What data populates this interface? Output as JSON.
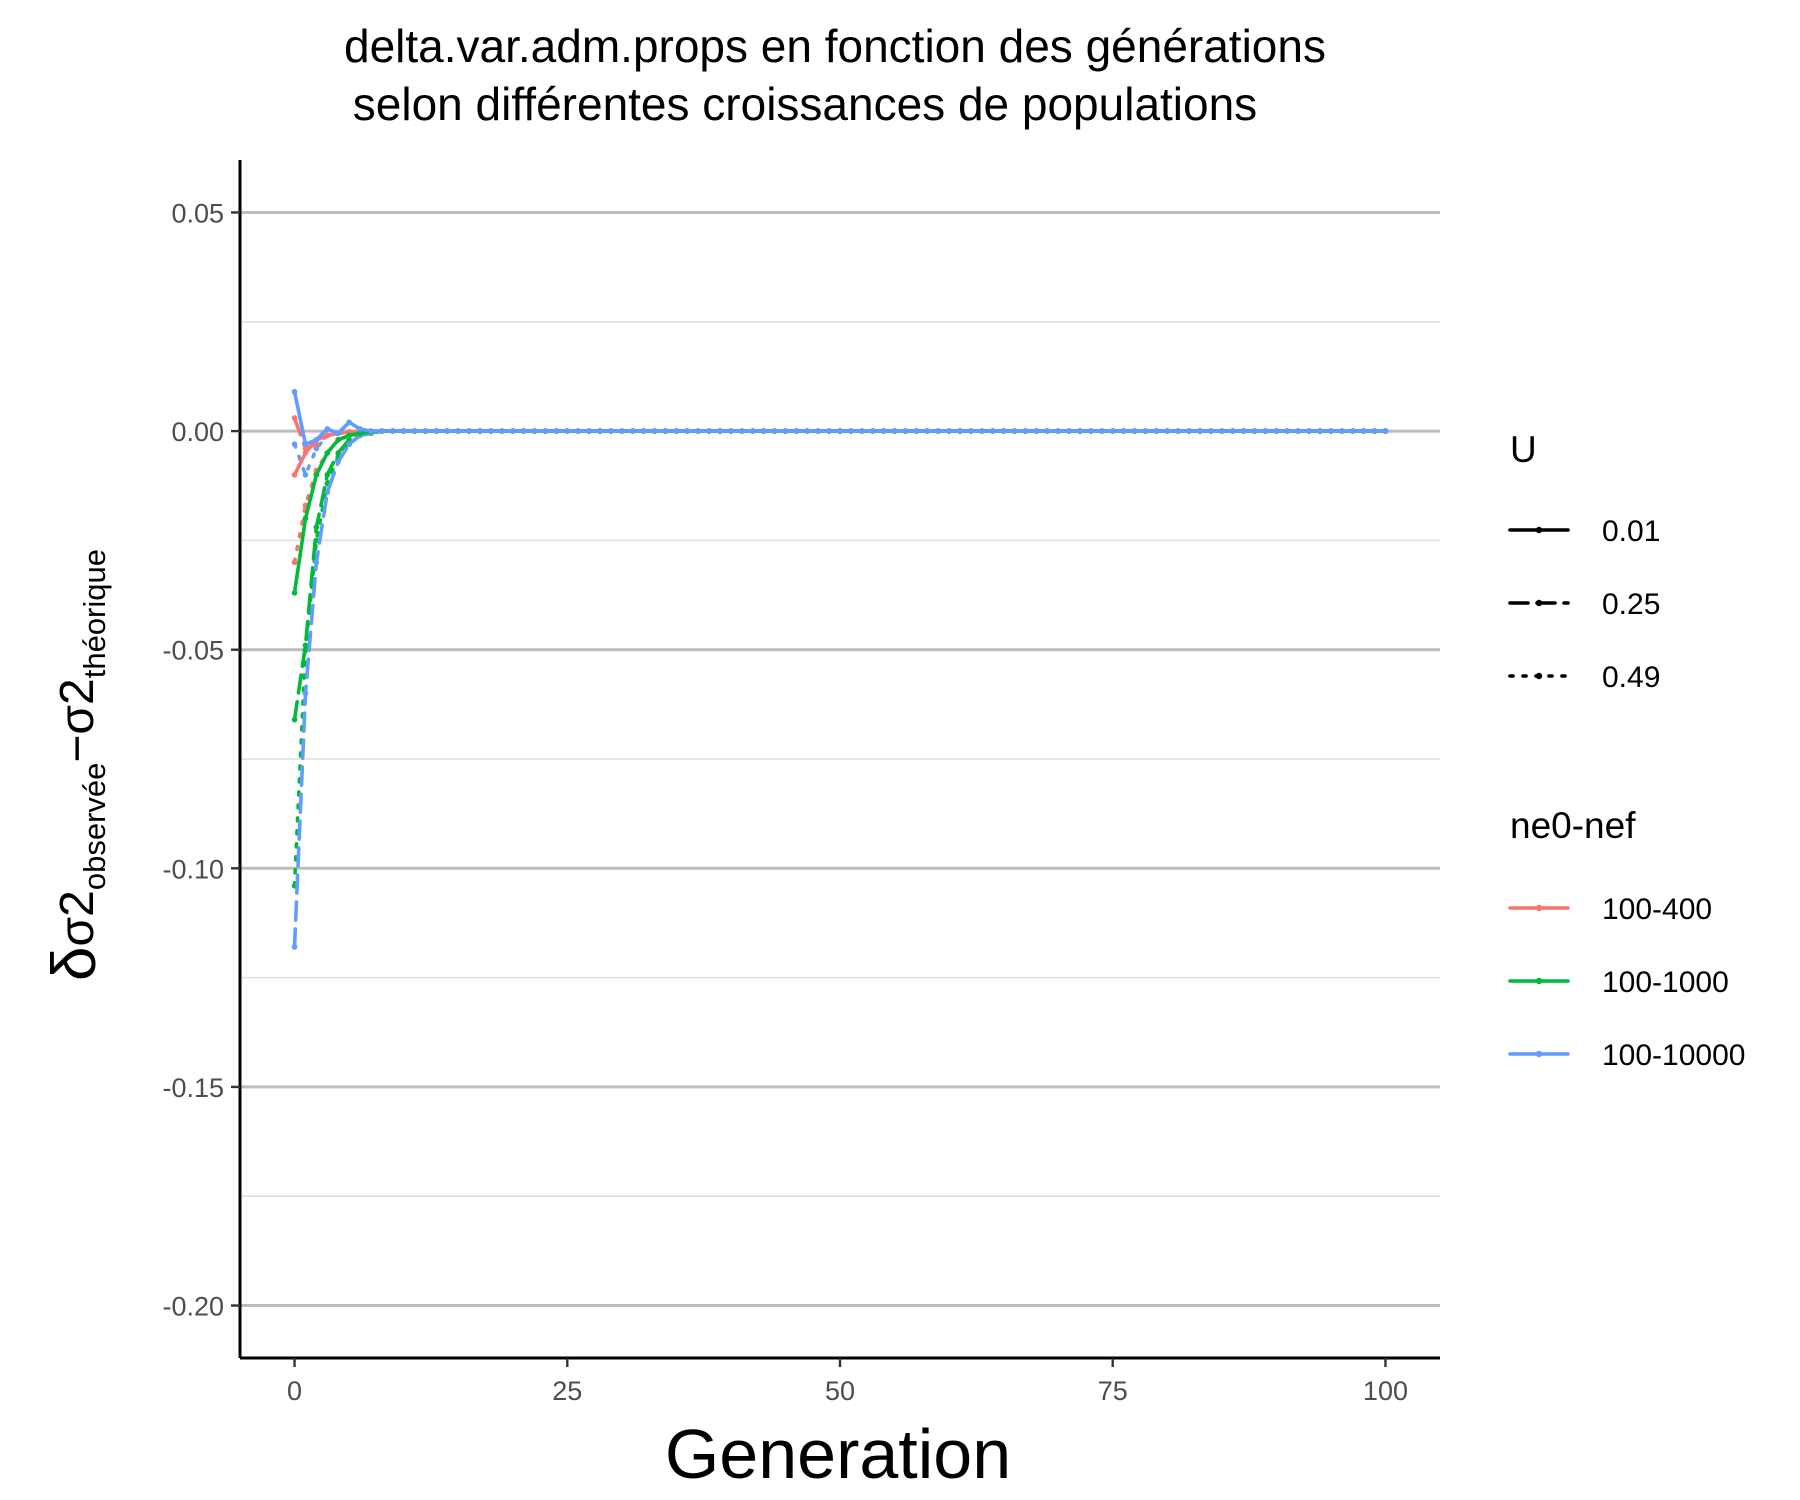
{
  "chart_data": {
    "type": "line",
    "title_lines": [
      "delta.var.adm.props en fonction des générations",
      "selon différentes croissances de populations"
    ],
    "xlabel": "Generation",
    "ylabel": {
      "delta": "δ",
      "sigma2": "σ2",
      "sub_observed": "observée",
      "minus": "−",
      "sub_theoretical": "théorique"
    },
    "xlim": [
      -5,
      105
    ],
    "ylim": [
      -0.212,
      0.062
    ],
    "x_ticks": [
      0,
      25,
      50,
      75,
      100
    ],
    "x_tick_labels": [
      "0",
      "25",
      "50",
      "75",
      "100"
    ],
    "y_ticks": [
      0.05,
      0.0,
      -0.05,
      -0.1,
      -0.15,
      -0.2
    ],
    "y_tick_labels": [
      "0.05",
      "0.00",
      "-0.05",
      "-0.10",
      "-0.15",
      "-0.20"
    ],
    "y_minor_gridlines": [
      0.025,
      -0.025,
      -0.075,
      -0.125,
      -0.175
    ],
    "grid": "horizontal",
    "legend_position": "right",
    "legends": [
      {
        "title": "U",
        "entries": [
          {
            "label": "0.01",
            "linetype": "solid"
          },
          {
            "label": "0.25",
            "linetype": "dashed"
          },
          {
            "label": "0.49",
            "linetype": "dotted"
          }
        ]
      },
      {
        "title": "ne0-nef",
        "entries": [
          {
            "label": "100-400",
            "color": "#F8766D"
          },
          {
            "label": "100-1000",
            "color": "#00BA38"
          },
          {
            "label": "100-10000",
            "color": "#619CFF"
          }
        ]
      }
    ],
    "x": [
      0,
      1,
      2,
      3,
      4,
      5,
      6,
      7,
      8,
      9,
      10
    ],
    "x_max": 100,
    "series": [
      {
        "ne": "100-400",
        "U": "0.01",
        "color": "#F8766D",
        "linetype": "solid",
        "values": [
          -0.01,
          -0.005,
          -0.002,
          -0.001,
          -0.0005,
          -0.0002,
          -0.0001,
          0,
          0,
          0,
          0
        ]
      },
      {
        "ne": "100-400",
        "U": "0.25",
        "color": "#F8766D",
        "linetype": "dashed",
        "values": [
          0.003,
          -0.004,
          -0.003,
          -0.001,
          -0.0005,
          -0.0002,
          -0.0001,
          0,
          0,
          0,
          0
        ]
      },
      {
        "ne": "100-400",
        "U": "0.49",
        "color": "#F8766D",
        "linetype": "dotted",
        "values": [
          -0.03,
          -0.017,
          -0.009,
          -0.005,
          -0.002,
          -0.001,
          -0.0005,
          -0.0002,
          0,
          0,
          0
        ]
      },
      {
        "ne": "100-1000",
        "U": "0.01",
        "color": "#00BA38",
        "linetype": "solid",
        "values": [
          -0.037,
          -0.02,
          -0.01,
          -0.005,
          -0.002,
          -0.001,
          -0.0005,
          -0.0002,
          0,
          0,
          0
        ]
      },
      {
        "ne": "100-1000",
        "U": "0.25",
        "color": "#00BA38",
        "linetype": "dashed",
        "values": [
          -0.066,
          -0.049,
          -0.022,
          -0.01,
          -0.005,
          -0.002,
          -0.001,
          -0.0004,
          0,
          0,
          0
        ]
      },
      {
        "ne": "100-1000",
        "U": "0.49",
        "color": "#00BA38",
        "linetype": "dotted",
        "values": [
          -0.104,
          -0.05,
          -0.025,
          -0.012,
          -0.006,
          -0.003,
          -0.001,
          -0.0005,
          0,
          0,
          0
        ]
      },
      {
        "ne": "100-10000",
        "U": "0.01",
        "color": "#619CFF",
        "linetype": "solid",
        "values": [
          0.009,
          -0.003,
          -0.002,
          0.0005,
          -0.0005,
          0.002,
          0.0005,
          0,
          0,
          0,
          0
        ]
      },
      {
        "ne": "100-10000",
        "U": "0.25",
        "color": "#619CFF",
        "linetype": "dashed",
        "values": [
          -0.118,
          -0.06,
          -0.03,
          -0.014,
          -0.007,
          -0.003,
          -0.001,
          -0.0005,
          0,
          0,
          0
        ]
      },
      {
        "ne": "100-10000",
        "U": "0.49",
        "color": "#619CFF",
        "linetype": "dotted",
        "values": [
          -0.003,
          -0.01,
          -0.004,
          -0.001,
          -0.0005,
          -0.0002,
          0,
          0,
          0,
          0,
          0
        ]
      }
    ]
  }
}
